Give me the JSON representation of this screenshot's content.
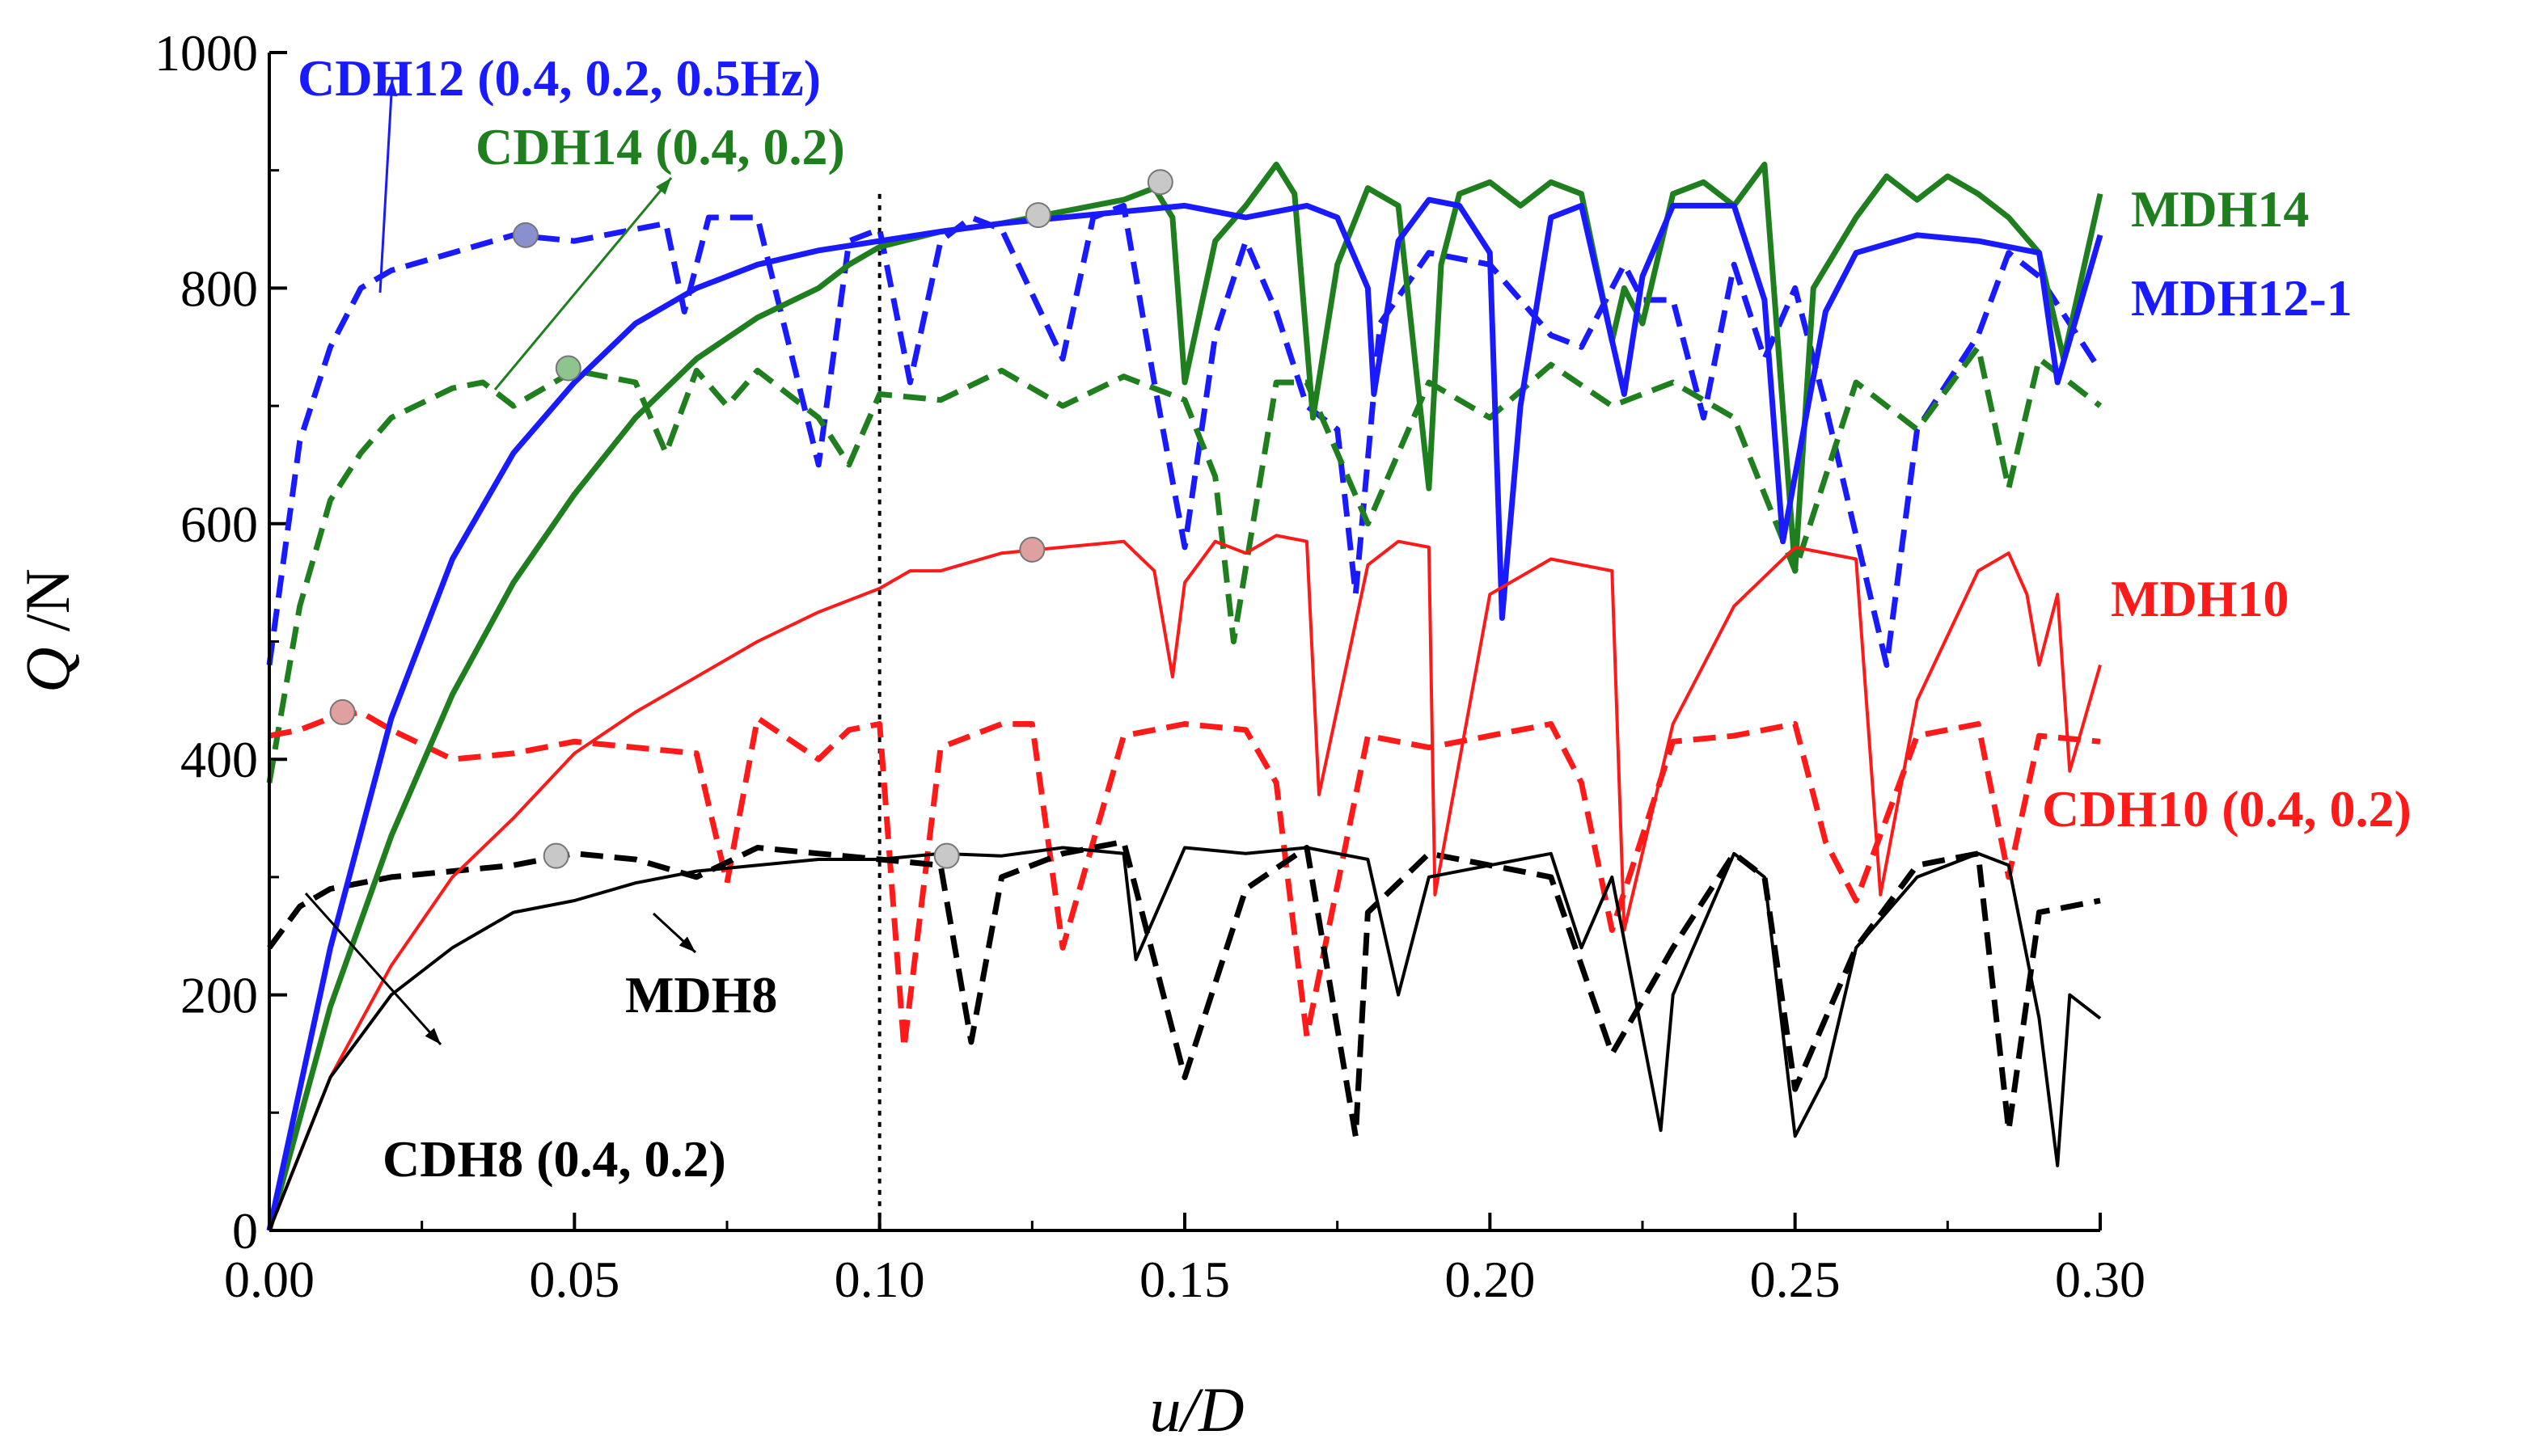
{
  "chart_data": {
    "type": "line",
    "title": "",
    "xlabel": {
      "var": "u",
      "rest": "/D"
    },
    "ylabel": {
      "var": "Q",
      "rest": " /N"
    },
    "xlim": [
      0,
      0.3
    ],
    "ylim": [
      0,
      1000
    ],
    "xticks": [
      "0.00",
      "0.05",
      "0.10",
      "0.15",
      "0.20",
      "0.25",
      "0.30"
    ],
    "yticks": [
      "0",
      "200",
      "400",
      "600",
      "800",
      "1000"
    ],
    "reference_line": {
      "x": 0.1,
      "style": "dotted"
    },
    "colors": {
      "blue": "#1a1aff",
      "green": "#1f7f1f",
      "red": "#ff1a1a",
      "black": "#000000"
    },
    "series": [
      {
        "name": "MDH14",
        "color": "#1f7f1f",
        "style": "solid",
        "width": 7,
        "x": [
          0,
          0.01,
          0.02,
          0.03,
          0.04,
          0.05,
          0.06,
          0.07,
          0.08,
          0.09,
          0.095,
          0.1,
          0.11,
          0.12,
          0.13,
          0.14,
          0.145,
          0.148,
          0.15,
          0.155,
          0.16,
          0.165,
          0.168,
          0.171,
          0.175,
          0.18,
          0.185,
          0.19,
          0.192,
          0.195,
          0.2,
          0.205,
          0.21,
          0.215,
          0.22,
          0.222,
          0.225,
          0.23,
          0.235,
          0.24,
          0.245,
          0.25,
          0.253,
          0.26,
          0.265,
          0.27,
          0.275,
          0.28,
          0.285,
          0.29,
          0.294,
          0.3
        ],
        "y": [
          0,
          190,
          335,
          455,
          550,
          625,
          690,
          740,
          775,
          800,
          820,
          835,
          848,
          855,
          865,
          875,
          885,
          860,
          720,
          840,
          870,
          905,
          880,
          690,
          820,
          885,
          870,
          630,
          820,
          880,
          890,
          870,
          890,
          880,
          755,
          800,
          770,
          880,
          890,
          870,
          905,
          560,
          800,
          860,
          895,
          875,
          895,
          880,
          860,
          830,
          740,
          880
        ]
      },
      {
        "name": "MDH12-1",
        "color": "#1a1aff",
        "style": "solid",
        "width": 7,
        "x": [
          0,
          0.01,
          0.02,
          0.03,
          0.04,
          0.05,
          0.06,
          0.07,
          0.08,
          0.09,
          0.1,
          0.11,
          0.12,
          0.13,
          0.14,
          0.15,
          0.16,
          0.17,
          0.175,
          0.18,
          0.181,
          0.185,
          0.19,
          0.195,
          0.2,
          0.202,
          0.205,
          0.21,
          0.215,
          0.222,
          0.225,
          0.23,
          0.24,
          0.245,
          0.248,
          0.255,
          0.26,
          0.27,
          0.28,
          0.29,
          0.293,
          0.3
        ],
        "y": [
          0,
          240,
          435,
          570,
          660,
          720,
          770,
          800,
          820,
          832,
          840,
          848,
          855,
          860,
          865,
          870,
          860,
          870,
          860,
          800,
          710,
          840,
          875,
          870,
          830,
          520,
          700,
          860,
          870,
          710,
          810,
          870,
          870,
          790,
          585,
          780,
          830,
          845,
          840,
          830,
          720,
          845
        ]
      },
      {
        "name": "MDH10",
        "color": "#ff1a1a",
        "style": "solid",
        "width": 4,
        "x": [
          0,
          0.01,
          0.02,
          0.03,
          0.04,
          0.05,
          0.06,
          0.07,
          0.08,
          0.09,
          0.095,
          0.1,
          0.105,
          0.11,
          0.12,
          0.13,
          0.14,
          0.145,
          0.148,
          0.15,
          0.155,
          0.16,
          0.165,
          0.17,
          0.172,
          0.18,
          0.185,
          0.19,
          0.191,
          0.2,
          0.21,
          0.22,
          0.222,
          0.23,
          0.24,
          0.25,
          0.26,
          0.264,
          0.27,
          0.28,
          0.285,
          0.288,
          0.29,
          0.293,
          0.295,
          0.3
        ],
        "y": [
          0,
          130,
          225,
          300,
          350,
          405,
          440,
          470,
          500,
          525,
          535,
          545,
          560,
          560,
          575,
          580,
          585,
          560,
          470,
          550,
          585,
          575,
          590,
          585,
          370,
          565,
          585,
          580,
          285,
          540,
          570,
          560,
          255,
          430,
          530,
          580,
          570,
          285,
          450,
          560,
          575,
          540,
          480,
          540,
          390,
          480
        ]
      },
      {
        "name": "MDH8",
        "color": "#000000",
        "style": "solid",
        "width": 4,
        "x": [
          0,
          0.01,
          0.02,
          0.03,
          0.04,
          0.05,
          0.06,
          0.07,
          0.08,
          0.09,
          0.1,
          0.11,
          0.12,
          0.13,
          0.14,
          0.142,
          0.15,
          0.16,
          0.17,
          0.18,
          0.185,
          0.19,
          0.2,
          0.21,
          0.215,
          0.22,
          0.228,
          0.23,
          0.24,
          0.245,
          0.25,
          0.255,
          0.26,
          0.27,
          0.28,
          0.285,
          0.29,
          0.293,
          0.295,
          0.3
        ],
        "y": [
          0,
          130,
          200,
          240,
          270,
          280,
          295,
          305,
          310,
          315,
          315,
          320,
          318,
          325,
          320,
          230,
          325,
          320,
          325,
          315,
          200,
          300,
          310,
          320,
          240,
          300,
          85,
          200,
          320,
          300,
          80,
          130,
          240,
          300,
          320,
          310,
          180,
          55,
          200,
          180
        ]
      },
      {
        "name": "CDH12 (0.4, 0.2, 0.5Hz)",
        "color": "#1a1aff",
        "style": "dash",
        "width": 7,
        "x": [
          0,
          0.005,
          0.01,
          0.015,
          0.02,
          0.03,
          0.04,
          0.05,
          0.06,
          0.065,
          0.068,
          0.072,
          0.08,
          0.09,
          0.095,
          0.1,
          0.105,
          0.11,
          0.115,
          0.12,
          0.13,
          0.135,
          0.14,
          0.145,
          0.15,
          0.155,
          0.16,
          0.165,
          0.17,
          0.175,
          0.178,
          0.182,
          0.19,
          0.2,
          0.21,
          0.215,
          0.222,
          0.225,
          0.23,
          0.235,
          0.24,
          0.245,
          0.25,
          0.255,
          0.26,
          0.265,
          0.27,
          0.28,
          0.285,
          0.29,
          0.3
        ],
        "y": [
          480,
          670,
          750,
          800,
          815,
          830,
          845,
          840,
          850,
          855,
          780,
          860,
          860,
          650,
          840,
          850,
          720,
          840,
          860,
          850,
          740,
          860,
          870,
          720,
          580,
          760,
          840,
          780,
          700,
          680,
          540,
          770,
          830,
          820,
          760,
          750,
          820,
          790,
          790,
          690,
          820,
          740,
          800,
          700,
          590,
          480,
          680,
          760,
          830,
          810,
          730
        ]
      },
      {
        "name": "CDH14 (0.4, 0.2)",
        "color": "#1f7f1f",
        "style": "dash",
        "width": 7,
        "x": [
          0,
          0.005,
          0.01,
          0.015,
          0.02,
          0.03,
          0.035,
          0.04,
          0.05,
          0.06,
          0.065,
          0.07,
          0.075,
          0.08,
          0.09,
          0.095,
          0.1,
          0.11,
          0.12,
          0.13,
          0.14,
          0.15,
          0.155,
          0.158,
          0.165,
          0.17,
          0.18,
          0.19,
          0.2,
          0.21,
          0.22,
          0.23,
          0.24,
          0.25,
          0.26,
          0.27,
          0.28,
          0.285,
          0.29,
          0.3
        ],
        "y": [
          380,
          530,
          620,
          660,
          690,
          715,
          720,
          700,
          730,
          720,
          660,
          730,
          700,
          730,
          690,
          650,
          710,
          705,
          730,
          700,
          725,
          705,
          640,
          500,
          720,
          720,
          600,
          720,
          690,
          735,
          700,
          720,
          690,
          560,
          720,
          680,
          750,
          630,
          740,
          700
        ]
      },
      {
        "name": "CDH10 (0.4, 0.2)",
        "color": "#ff1a1a",
        "style": "dash",
        "width": 7,
        "x": [
          0,
          0.005,
          0.01,
          0.015,
          0.02,
          0.03,
          0.04,
          0.05,
          0.06,
          0.07,
          0.075,
          0.08,
          0.09,
          0.095,
          0.1,
          0.104,
          0.11,
          0.12,
          0.125,
          0.13,
          0.14,
          0.15,
          0.16,
          0.165,
          0.17,
          0.18,
          0.19,
          0.2,
          0.21,
          0.215,
          0.22,
          0.23,
          0.24,
          0.25,
          0.255,
          0.26,
          0.27,
          0.28,
          0.285,
          0.29,
          0.3
        ],
        "y": [
          420,
          425,
          435,
          440,
          425,
          400,
          405,
          415,
          410,
          405,
          295,
          435,
          400,
          425,
          430,
          155,
          410,
          430,
          430,
          240,
          420,
          430,
          425,
          380,
          165,
          420,
          410,
          420,
          430,
          380,
          255,
          415,
          420,
          430,
          330,
          280,
          420,
          430,
          300,
          420,
          415
        ]
      },
      {
        "name": "CDH8 (0.4, 0.2)",
        "color": "#000000",
        "style": "dash",
        "width": 7,
        "x": [
          0,
          0.005,
          0.01,
          0.02,
          0.03,
          0.04,
          0.05,
          0.06,
          0.07,
          0.08,
          0.09,
          0.1,
          0.11,
          0.115,
          0.12,
          0.13,
          0.14,
          0.15,
          0.16,
          0.17,
          0.178,
          0.18,
          0.19,
          0.2,
          0.21,
          0.22,
          0.23,
          0.24,
          0.245,
          0.25,
          0.26,
          0.27,
          0.28,
          0.285,
          0.29,
          0.3
        ],
        "y": [
          240,
          275,
          290,
          300,
          305,
          310,
          320,
          315,
          300,
          325,
          320,
          315,
          310,
          160,
          300,
          320,
          330,
          130,
          290,
          325,
          80,
          270,
          320,
          310,
          300,
          150,
          240,
          320,
          300,
          120,
          240,
          310,
          320,
          85,
          270,
          280
        ]
      }
    ],
    "markers": [
      {
        "x": 0.042,
        "y": 845,
        "fill": "#8a8fd0"
      },
      {
        "x": 0.049,
        "y": 732,
        "fill": "#8fc48f"
      },
      {
        "x": 0.126,
        "y": 862,
        "fill": "#c8c8c8"
      },
      {
        "x": 0.146,
        "y": 890,
        "fill": "#c8c8c8"
      },
      {
        "x": 0.125,
        "y": 578,
        "fill": "#e0a0a0"
      },
      {
        "x": 0.012,
        "y": 440,
        "fill": "#e0a0a0"
      },
      {
        "x": 0.047,
        "y": 318,
        "fill": "#c8c8c8"
      },
      {
        "x": 0.111,
        "y": 318,
        "fill": "#c8c8c8"
      }
    ],
    "annotations": [
      {
        "text": "CDH12 (0.4, 0.2, 0.5Hz)",
        "color": "#1a1aff"
      },
      {
        "text": "CDH14 (0.4, 0.2)",
        "color": "#1f7f1f"
      },
      {
        "text": "MDH14",
        "color": "#1f7f1f"
      },
      {
        "text": "MDH12-1",
        "color": "#1a1aff"
      },
      {
        "text": "MDH10",
        "color": "#ff1a1a"
      },
      {
        "text": "CDH10 (0.4, 0.2)",
        "color": "#ff1a1a"
      },
      {
        "text": "MDH8",
        "color": "#000000"
      },
      {
        "text": "CDH8 (0.4, 0.2)",
        "color": "#000000"
      }
    ]
  }
}
